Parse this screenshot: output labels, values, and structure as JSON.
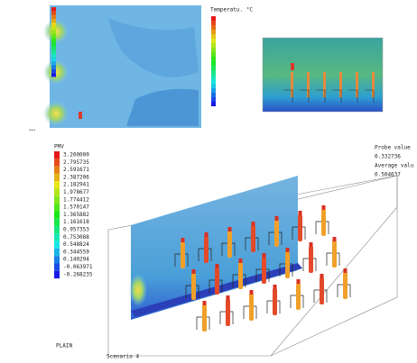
{
  "temperature_panel": {
    "legend_title": "Temperatu. °C"
  },
  "pmv_panel": {
    "legend_title": "PMV",
    "legend_labels": [
      "3.200000",
      "2.795735",
      "2.591671",
      "2.387206",
      "2.182941",
      "1.978677",
      "1.774412",
      "1.570147",
      "1.365882",
      "1.161618",
      "0.957353",
      "0.753088",
      "0.548824",
      "0.344559",
      "0.140294",
      "-0.063971",
      "-0.268235"
    ],
    "probe_label": "Probe value",
    "probe_value": "0.332736",
    "average_label": "Average valu",
    "average_value": "0.504637",
    "view_label": "PLAIN",
    "scenario": "Scenario 4"
  }
}
